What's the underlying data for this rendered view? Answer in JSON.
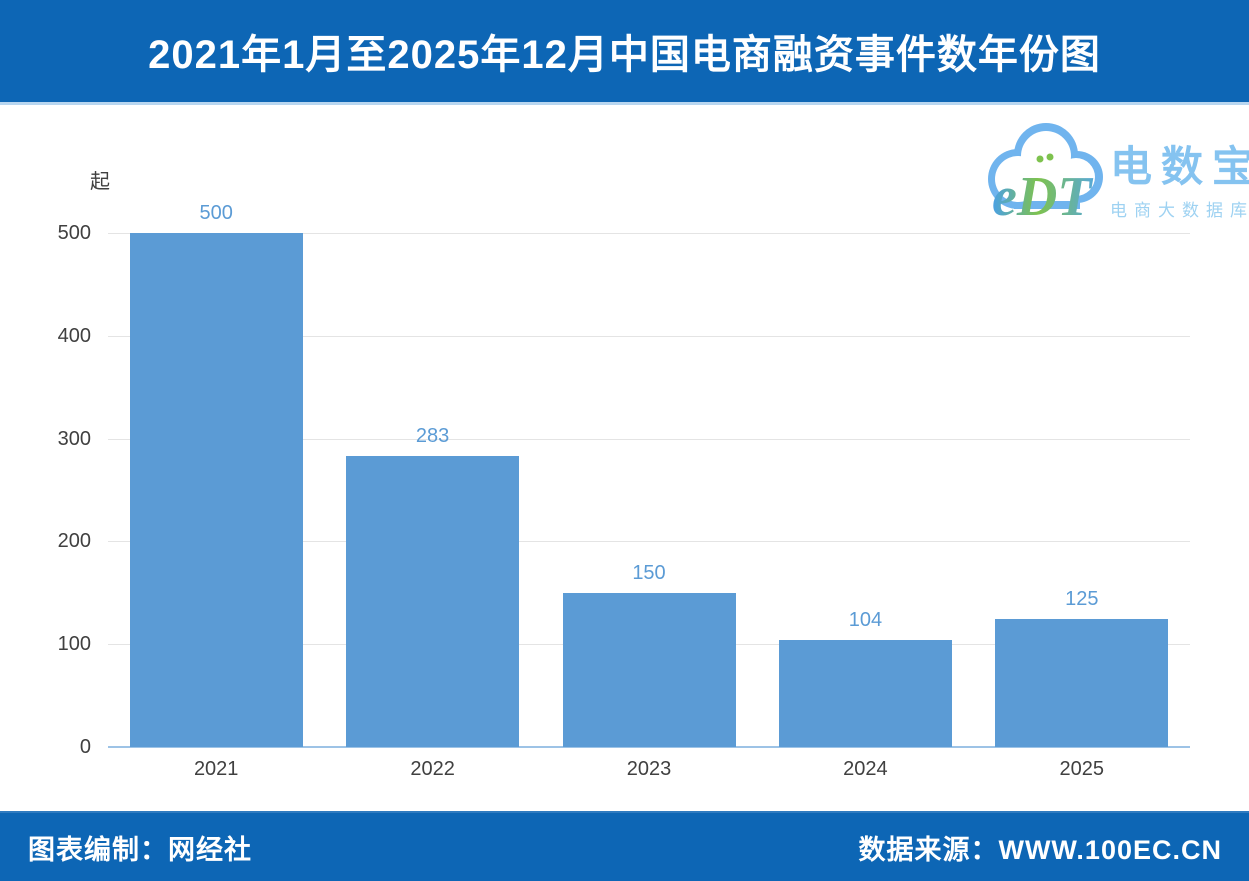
{
  "header": {
    "title": "2021年1月至2025年12月中国电商融资事件数年份图",
    "background_color": "#0d66b5",
    "text_color": "#ffffff"
  },
  "logo": {
    "monogram": "eDT",
    "name": "电数宝",
    "subtitle": "电商大数据库",
    "cloud_color": "#70b4ee",
    "name_color": "#85c3f0",
    "subtitle_color": "#9ed2f2"
  },
  "chart_data": {
    "type": "bar",
    "title": "2021年1月至2025年12月中国电商融资事件数年份图",
    "categories": [
      "2021",
      "2022",
      "2023",
      "2024",
      "2025"
    ],
    "values": [
      500,
      283,
      150,
      104,
      125
    ],
    "unit_label": "起",
    "xlabel": "",
    "ylabel": "起",
    "ylim": [
      0,
      500
    ],
    "yticks": [
      0,
      100,
      200,
      300,
      400,
      500
    ],
    "grid": true,
    "legend": false,
    "bar_color": "#5b9bd5",
    "value_label_color": "#5b9bd5",
    "tick_label_color": "#404040",
    "gridline_color": "#e4e4e4",
    "axis_line_color": "#9dc3e6"
  },
  "footer": {
    "left_text": "图表编制：网经社",
    "right_text": "数据来源：WWW.100EC.CN",
    "background_color": "#0d66b5"
  }
}
